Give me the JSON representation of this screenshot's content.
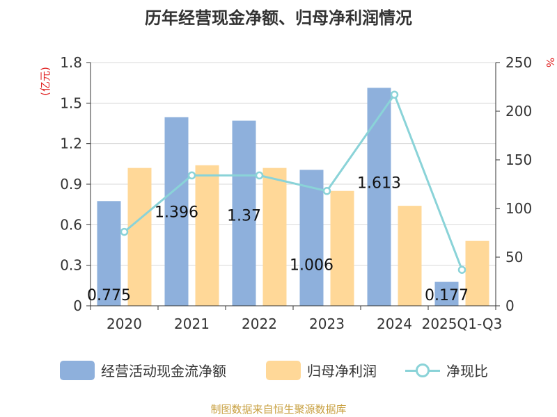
{
  "chart_data": {
    "type": "bar",
    "title": "历年经营现金净额、归母净利润情况",
    "categories": [
      "2020",
      "2021",
      "2022",
      "2023",
      "2024",
      "2025Q1-Q3"
    ],
    "series": [
      {
        "name": "经营活动现金流净额",
        "type": "bar",
        "axis": "left",
        "color": "#8eb0dc",
        "values": [
          0.775,
          1.396,
          1.37,
          1.006,
          1.613,
          0.177
        ],
        "data_labels": [
          "0.775",
          "1.396",
          "1.37",
          "1.006",
          "1.613",
          "0.177"
        ]
      },
      {
        "name": "归母净利润",
        "type": "bar",
        "axis": "left",
        "color": "#ffd898",
        "values": [
          1.02,
          1.04,
          1.02,
          0.85,
          0.74,
          0.48
        ]
      },
      {
        "name": "净现比",
        "type": "line",
        "axis": "right",
        "color": "#8ad3d8",
        "values": [
          76,
          134,
          134,
          118,
          217,
          37
        ]
      }
    ],
    "y_left": {
      "label": "(亿元)",
      "range": [
        0,
        1.8
      ],
      "ticks": [
        "0",
        "0.3",
        "0.6",
        "0.9",
        "1.2",
        "1.5",
        "1.8"
      ]
    },
    "y_right": {
      "label": "%",
      "range": [
        0,
        250
      ],
      "ticks": [
        "0",
        "50",
        "100",
        "150",
        "200",
        "250"
      ]
    },
    "grid": true,
    "legend_position": "bottom"
  },
  "source_text": "制图数据来自恒生聚源数据库"
}
